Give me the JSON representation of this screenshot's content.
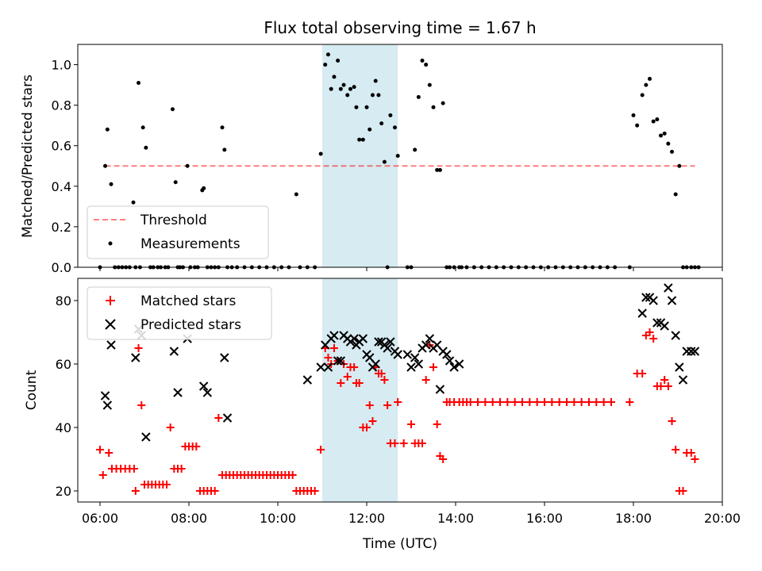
{
  "chart_data": [
    {
      "type": "scatter",
      "title": "Flux total observing time = 1.67 h",
      "xlabel": "",
      "ylabel": "Matched/Predicted stars",
      "xlim": [
        "05:30",
        "20:00"
      ],
      "ylim": [
        0,
        1.1
      ],
      "yticks": [
        "0.0",
        "0.2",
        "0.4",
        "0.6",
        "0.8",
        "1.0"
      ],
      "grid": false,
      "legend_position": "lower-left",
      "highlight_span": [
        "11:00",
        "12:42"
      ],
      "threshold": {
        "name": "Threshold",
        "value": 0.5,
        "x_range": [
          "06:07",
          "19:23"
        ]
      },
      "series": [
        {
          "name": "Measurements",
          "x": [
            "06:00",
            "06:07",
            "06:10",
            "06:15",
            "06:20",
            "06:25",
            "06:30",
            "06:35",
            "06:40",
            "06:45",
            "06:48",
            "06:52",
            "06:54",
            "06:58",
            "07:02",
            "07:08",
            "07:12",
            "07:18",
            "07:22",
            "07:28",
            "07:32",
            "07:38",
            "07:42",
            "07:45",
            "07:48",
            "07:52",
            "07:58",
            "08:02",
            "08:08",
            "08:12",
            "08:18",
            "08:20",
            "08:25",
            "08:30",
            "08:35",
            "08:40",
            "08:45",
            "08:48",
            "08:52",
            "08:58",
            "09:05",
            "09:15",
            "09:25",
            "09:35",
            "09:45",
            "09:55",
            "10:05",
            "10:15",
            "10:25",
            "10:30",
            "10:40",
            "10:50",
            "10:58",
            "11:04",
            "11:08",
            "11:12",
            "11:16",
            "11:21",
            "11:25",
            "11:29",
            "11:34",
            "11:38",
            "11:43",
            "11:46",
            "11:50",
            "11:55",
            "12:00",
            "12:04",
            "12:08",
            "12:12",
            "12:16",
            "12:20",
            "12:24",
            "12:28",
            "12:32",
            "12:38",
            "12:42",
            "12:55",
            "13:00",
            "13:05",
            "13:10",
            "13:15",
            "13:20",
            "13:25",
            "13:30",
            "13:35",
            "13:39",
            "13:43",
            "13:48",
            "13:52",
            "13:58",
            "14:05",
            "14:08",
            "14:15",
            "14:25",
            "14:35",
            "14:45",
            "14:55",
            "15:05",
            "15:15",
            "15:25",
            "15:35",
            "15:45",
            "15:55",
            "16:05",
            "16:15",
            "16:25",
            "16:35",
            "16:45",
            "16:55",
            "17:05",
            "17:15",
            "17:25",
            "17:35",
            "17:55",
            "18:00",
            "18:05",
            "18:12",
            "18:17",
            "18:22",
            "18:27",
            "18:32",
            "18:37",
            "18:42",
            "18:47",
            "18:52",
            "18:57",
            "19:02",
            "19:07",
            "19:12",
            "19:18",
            "19:23",
            "19:28"
          ],
          "y": [
            0.0,
            0.5,
            0.68,
            0.41,
            0.0,
            0.0,
            0.0,
            0.0,
            0.0,
            0.32,
            0.0,
            0.91,
            0.0,
            0.69,
            0.59,
            0.0,
            0.0,
            0.0,
            0.0,
            0.0,
            0.0,
            0.78,
            0.42,
            0.0,
            0.0,
            0.0,
            0.5,
            0.0,
            0.0,
            0.0,
            0.38,
            0.39,
            0.0,
            0.0,
            0.0,
            0.0,
            0.69,
            0.58,
            0.0,
            0.0,
            0.0,
            0.0,
            0.0,
            0.0,
            0.0,
            0.0,
            0.0,
            0.0,
            0.36,
            0.0,
            0.0,
            0.0,
            0.56,
            1.0,
            1.05,
            0.88,
            0.94,
            1.02,
            0.88,
            0.9,
            0.85,
            0.88,
            0.89,
            0.79,
            0.63,
            0.63,
            0.79,
            0.68,
            0.85,
            0.92,
            0.85,
            0.71,
            0.52,
            0.0,
            0.75,
            0.69,
            0.55,
            0.0,
            0.0,
            0.58,
            0.84,
            1.02,
            1.0,
            0.9,
            0.79,
            0.48,
            0.48,
            0.81,
            0.0,
            0.0,
            0.0,
            0.0,
            0.0,
            0.0,
            0.0,
            0.0,
            0.0,
            0.0,
            0.0,
            0.0,
            0.0,
            0.0,
            0.0,
            0.0,
            0.0,
            0.0,
            0.0,
            0.0,
            0.0,
            0.0,
            0.0,
            0.0,
            0.0,
            0.0,
            0.0,
            0.75,
            0.7,
            0.85,
            0.9,
            0.93,
            0.72,
            0.73,
            0.65,
            0.66,
            0.61,
            0.57,
            0.36,
            0.5,
            0.0,
            0.0,
            0.0,
            0.0,
            0.0
          ]
        }
      ]
    },
    {
      "type": "scatter",
      "title": "",
      "xlabel": "Time (UTC)",
      "ylabel": "Count",
      "xlim": [
        "05:30",
        "20:00"
      ],
      "ylim": [
        16.5,
        87
      ],
      "yticks": [
        "20",
        "40",
        "60",
        "80"
      ],
      "xticks": [
        "06:00",
        "08:00",
        "10:00",
        "12:00",
        "14:00",
        "16:00",
        "18:00",
        "20:00"
      ],
      "grid": false,
      "legend_position": "top-left",
      "highlight_span": [
        "11:00",
        "12:42"
      ],
      "series": [
        {
          "name": "Matched stars",
          "marker": "plus",
          "color": "#ff0000",
          "x": [
            "06:00",
            "06:04",
            "06:12",
            "06:16",
            "06:22",
            "06:28",
            "06:34",
            "06:40",
            "06:46",
            "06:48",
            "06:52",
            "06:56",
            "07:00",
            "07:05",
            "07:10",
            "07:15",
            "07:20",
            "07:25",
            "07:30",
            "07:35",
            "07:40",
            "07:45",
            "07:50",
            "07:55",
            "08:00",
            "08:05",
            "08:10",
            "08:15",
            "08:20",
            "08:25",
            "08:30",
            "08:35",
            "08:40",
            "08:45",
            "08:50",
            "08:55",
            "09:00",
            "09:05",
            "09:10",
            "09:15",
            "09:20",
            "09:25",
            "09:30",
            "09:35",
            "09:40",
            "09:45",
            "09:50",
            "09:55",
            "10:00",
            "10:05",
            "10:10",
            "10:15",
            "10:20",
            "10:25",
            "10:30",
            "10:35",
            "10:40",
            "10:45",
            "10:50",
            "10:58",
            "11:04",
            "11:08",
            "11:12",
            "11:16",
            "11:21",
            "11:25",
            "11:29",
            "11:34",
            "11:38",
            "11:43",
            "11:46",
            "11:50",
            "11:55",
            "12:00",
            "12:04",
            "12:08",
            "12:12",
            "12:16",
            "12:20",
            "12:24",
            "12:28",
            "12:32",
            "12:38",
            "12:42",
            "12:50",
            "13:00",
            "13:05",
            "13:10",
            "13:15",
            "13:20",
            "13:25",
            "13:30",
            "13:35",
            "13:39",
            "13:43",
            "13:48",
            "13:52",
            "13:58",
            "14:05",
            "14:10",
            "14:15",
            "14:20",
            "14:30",
            "14:40",
            "14:50",
            "15:00",
            "15:10",
            "15:20",
            "15:30",
            "15:40",
            "15:50",
            "16:00",
            "16:10",
            "16:20",
            "16:30",
            "16:40",
            "16:50",
            "17:00",
            "17:10",
            "17:20",
            "17:30",
            "17:55",
            "18:05",
            "18:12",
            "18:17",
            "18:22",
            "18:27",
            "18:32",
            "18:37",
            "18:42",
            "18:47",
            "18:52",
            "18:57",
            "19:02",
            "19:07",
            "19:12",
            "19:18",
            "19:23"
          ],
          "y": [
            33,
            25,
            32,
            27,
            27,
            27,
            27,
            27,
            27,
            20,
            65,
            47,
            22,
            22,
            22,
            22,
            22,
            22,
            22,
            40,
            27,
            27,
            27,
            34,
            34,
            34,
            34,
            20,
            20,
            20,
            20,
            20,
            43,
            25,
            25,
            25,
            25,
            25,
            25,
            25,
            25,
            25,
            25,
            25,
            25,
            25,
            25,
            25,
            25,
            25,
            25,
            25,
            25,
            20,
            20,
            20,
            20,
            20,
            20,
            33,
            65,
            62,
            60,
            65,
            61,
            54,
            60,
            56,
            59,
            59,
            54,
            54,
            40,
            40,
            47,
            42,
            59,
            57,
            57,
            55,
            47,
            35,
            35,
            48,
            35,
            41,
            35,
            35,
            35,
            55,
            66,
            59,
            41,
            31,
            30,
            48,
            48,
            48,
            48,
            48,
            48,
            48,
            48,
            48,
            48,
            48,
            48,
            48,
            48,
            48,
            48,
            48,
            48,
            48,
            48,
            48,
            48,
            48,
            48,
            48,
            48,
            48,
            57,
            57,
            69,
            70,
            68,
            53,
            53,
            55,
            53,
            42,
            33,
            20,
            20,
            32,
            32,
            30
          ]
        },
        {
          "name": "Predicted stars",
          "marker": "x",
          "color": "#000000",
          "x": [
            "06:07",
            "06:10",
            "06:15",
            "06:52",
            "06:56",
            "07:02",
            "06:48",
            "07:40",
            "07:45",
            "07:58",
            "08:20",
            "08:25",
            "08:48",
            "08:52",
            "10:40",
            "10:58",
            "11:04",
            "11:08",
            "11:12",
            "11:16",
            "11:21",
            "11:25",
            "11:29",
            "11:34",
            "11:38",
            "11:43",
            "11:46",
            "11:50",
            "11:55",
            "12:00",
            "12:04",
            "12:08",
            "12:12",
            "12:16",
            "12:20",
            "12:24",
            "12:28",
            "12:32",
            "12:38",
            "12:42",
            "12:55",
            "13:00",
            "13:05",
            "13:10",
            "13:15",
            "13:20",
            "13:25",
            "13:30",
            "13:35",
            "13:39",
            "13:43",
            "13:48",
            "13:52",
            "13:58",
            "14:05",
            "18:12",
            "18:17",
            "18:22",
            "18:27",
            "18:32",
            "18:37",
            "18:42",
            "18:47",
            "18:52",
            "18:57",
            "19:02",
            "19:07",
            "19:12",
            "19:18",
            "19:23"
          ],
          "y": [
            50,
            47,
            66,
            71,
            69,
            37,
            62,
            64,
            51,
            68,
            53,
            51,
            62,
            43,
            55,
            59,
            66,
            59,
            68,
            69,
            61,
            61,
            69,
            68,
            67,
            68,
            66,
            67,
            68,
            63,
            62,
            59,
            60,
            67,
            67,
            66,
            65,
            67,
            64,
            63,
            63,
            59,
            62,
            60,
            65,
            66,
            68,
            65,
            66,
            52,
            64,
            63,
            61,
            59,
            60,
            76,
            81,
            81,
            80,
            73,
            73,
            72,
            84,
            80,
            69,
            59,
            55,
            64,
            64,
            64
          ]
        }
      ]
    }
  ]
}
